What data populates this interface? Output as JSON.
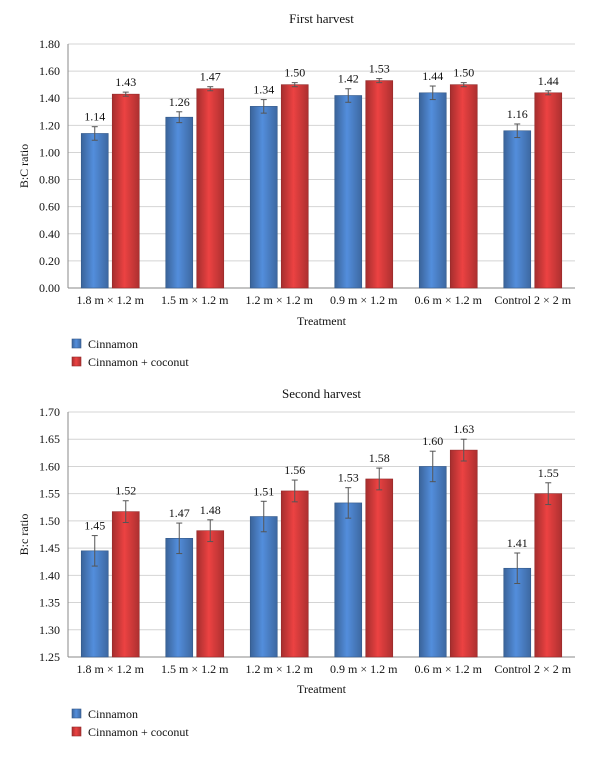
{
  "chart_data": [
    {
      "type": "bar",
      "title": "First harvest",
      "xlabel": "Treatment",
      "ylabel": "B:C ratio",
      "ylim": [
        0.0,
        1.8
      ],
      "yticks": [
        "0.00",
        "0.20",
        "0.40",
        "0.60",
        "0.80",
        "1.00",
        "1.20",
        "1.40",
        "1.60",
        "1.80"
      ],
      "categories": [
        "1.8 m × 1.2 m",
        "1.5 m × 1.2 m",
        "1.2 m × 1.2 m",
        "0.9 m × 1.2 m",
        "0.6 m × 1.2 m",
        "Control 2 × 2 m"
      ],
      "series": [
        {
          "name": "Cinnamon",
          "color": "#4a7fc4",
          "values": [
            1.14,
            1.26,
            1.34,
            1.42,
            1.44,
            1.16
          ],
          "labels": [
            "1.14",
            "1.26",
            "1.34",
            "1.42",
            "1.44",
            "1.16"
          ],
          "errors": [
            0.05,
            0.04,
            0.05,
            0.05,
            0.05,
            0.05
          ]
        },
        {
          "name": "Cinnamon + coconut",
          "color": "#d33b3b",
          "values": [
            1.43,
            1.47,
            1.5,
            1.53,
            1.5,
            1.44
          ],
          "labels": [
            "1.43",
            "1.47",
            "1.50",
            "1.53",
            "1.50",
            "1.44"
          ],
          "errors": [
            0.015,
            0.015,
            0.015,
            0.015,
            0.015,
            0.015
          ]
        }
      ],
      "grid": true,
      "legend": "bottom-left"
    },
    {
      "type": "bar",
      "title": "Second harvest",
      "xlabel": "Treatment",
      "ylabel": "B:c ratio",
      "ylim": [
        1.25,
        1.7
      ],
      "yticks": [
        "1.25",
        "1.30",
        "1.35",
        "1.40",
        "1.45",
        "1.50",
        "1.55",
        "1.60",
        "1.65",
        "1.70"
      ],
      "categories": [
        "1.8 m × 1.2 m",
        "1.5 m × 1.2 m",
        "1.2 m × 1.2 m",
        "0.9 m × 1.2 m",
        "0.6 m × 1.2 m",
        "Control 2 × 2 m"
      ],
      "series": [
        {
          "name": "Cinnamon",
          "color": "#4a7fc4",
          "values": [
            1.445,
            1.468,
            1.508,
            1.533,
            1.6,
            1.413
          ],
          "labels": [
            "1.45",
            "1.47",
            "1.51",
            "1.53",
            "1.60",
            "1.41"
          ],
          "errors": [
            0.028,
            0.028,
            0.028,
            0.028,
            0.028,
            0.028
          ]
        },
        {
          "name": "Cinnamon + coconut",
          "color": "#d33b3b",
          "values": [
            1.517,
            1.482,
            1.555,
            1.577,
            1.63,
            1.55
          ],
          "labels": [
            "1.52",
            "1.48",
            "1.56",
            "1.58",
            "1.63",
            "1.55"
          ],
          "errors": [
            0.02,
            0.02,
            0.02,
            0.02,
            0.02,
            0.02
          ]
        }
      ],
      "grid": true,
      "legend": "bottom-left"
    }
  ]
}
